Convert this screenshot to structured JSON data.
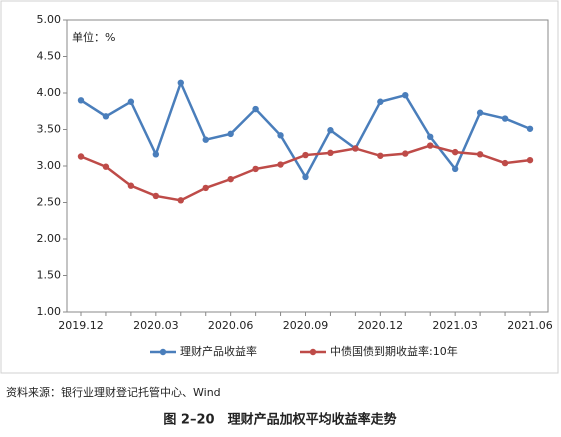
{
  "chart_data": {
    "type": "line",
    "unit_label": "单位：%",
    "categories": [
      "2019.12",
      null,
      null,
      "2020.03",
      null,
      null,
      "2020.06",
      null,
      null,
      "2020.09",
      null,
      null,
      "2020.12",
      null,
      null,
      "2021.03",
      null,
      null,
      "2021.06"
    ],
    "series": [
      {
        "name": "理财产品收益率",
        "color": "#4a7ebb",
        "values": [
          3.9,
          3.68,
          3.88,
          3.16,
          4.14,
          3.36,
          3.44,
          3.78,
          3.42,
          2.85,
          3.49,
          3.24,
          3.88,
          3.97,
          3.4,
          2.96,
          3.73,
          3.65,
          3.51
        ]
      },
      {
        "name": "中债国债到期收益率:10年",
        "color": "#be4b48",
        "values": [
          3.13,
          2.99,
          2.73,
          2.59,
          2.53,
          2.7,
          2.82,
          2.96,
          3.02,
          3.15,
          3.18,
          3.24,
          3.14,
          3.17,
          3.28,
          3.19,
          3.16,
          3.04,
          3.08
        ]
      }
    ],
    "ylim": [
      1,
      5
    ],
    "yticks": [
      {
        "value": 1,
        "label": "1.00"
      },
      {
        "value": 1.5,
        "label": "1.50"
      },
      {
        "value": 2,
        "label": "2.00"
      },
      {
        "value": 2.5,
        "label": "2.50"
      },
      {
        "value": 3,
        "label": "3.00"
      },
      {
        "value": 3.5,
        "label": "3.50"
      },
      {
        "value": 4,
        "label": "4.00"
      },
      {
        "value": 4.5,
        "label": "4.50"
      },
      {
        "value": 5,
        "label": "5.00"
      }
    ],
    "legend": "bottom",
    "source": "资料来源：银行业理财登记托管中心、Wind",
    "caption": "图 2–20　理财产品加权平均收益率走势"
  }
}
